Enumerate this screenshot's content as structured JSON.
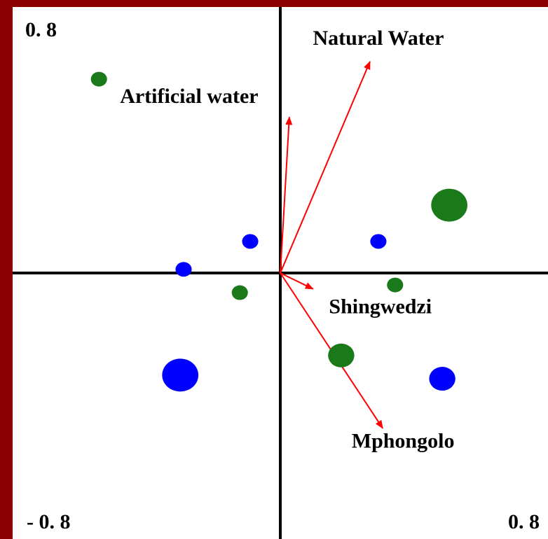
{
  "chart_data": {
    "type": "scatter",
    "xlim": [
      -0.8,
      0.8
    ],
    "ylim": [
      -0.8,
      0.8
    ],
    "xticks": [
      {
        "value": -0.8,
        "label": "- 0. 8"
      },
      {
        "value": 0.8,
        "label": "0. 8"
      }
    ],
    "yticks": [
      {
        "value": 0.8,
        "label": "0. 8"
      }
    ],
    "series": [
      {
        "color": "#1a7a1a",
        "x": [
          -0.542,
          0.505,
          -0.121,
          0.343,
          0.182
        ],
        "values": [
          0.583,
          0.204,
          -0.059,
          -0.036,
          -0.248
        ],
        "sizes": [
          1,
          3,
          1,
          1,
          2
        ]
      },
      {
        "color": "#0000ff",
        "x": [
          -0.09,
          0.293,
          -0.289,
          -0.299,
          0.484
        ],
        "values": [
          0.095,
          0.095,
          0.011,
          -0.307,
          -0.318
        ],
        "sizes": [
          1,
          1,
          1,
          3,
          2
        ]
      }
    ],
    "vectors": {
      "color": "#ff0000",
      "names": [
        "Natural Water",
        "Artificial water",
        "Shingwedzi",
        "Mphongolo"
      ],
      "x": [
        0.268,
        0.027,
        0.098,
        0.306
      ],
      "values": [
        0.636,
        0.469,
        -0.048,
        -0.467
      ]
    }
  }
}
